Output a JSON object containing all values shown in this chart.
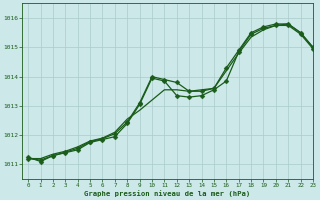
{
  "title": "Graphe pression niveau de la mer (hPa)",
  "background_color": "#cce8e8",
  "grid_color": "#aacccc",
  "line_color": "#1a5c1a",
  "xlim": [
    -0.5,
    23
  ],
  "ylim": [
    1010.5,
    1016.5
  ],
  "yticks": [
    1011,
    1012,
    1013,
    1014,
    1015,
    1016
  ],
  "xticks": [
    0,
    1,
    2,
    3,
    4,
    5,
    6,
    7,
    8,
    9,
    10,
    11,
    12,
    13,
    14,
    15,
    16,
    17,
    18,
    19,
    20,
    21,
    22,
    23
  ],
  "series": [
    {
      "x": [
        0,
        1,
        2,
        3,
        4,
        5,
        6,
        7,
        8,
        9,
        10,
        11,
        12,
        13,
        14,
        15,
        16,
        17,
        18,
        19,
        20,
        21,
        22,
        23
      ],
      "y": [
        1011.2,
        1011.15,
        1011.3,
        1011.4,
        1011.5,
        1011.75,
        1011.85,
        1011.95,
        1012.4,
        1013.05,
        1013.95,
        1013.85,
        1013.35,
        1013.3,
        1013.35,
        1013.55,
        1013.85,
        1014.85,
        1015.45,
        1015.65,
        1015.75,
        1015.75,
        1015.45,
        1014.95
      ],
      "marker": "D",
      "markersize": 2.5,
      "lw": 0.9
    },
    {
      "x": [
        0,
        1,
        2,
        3,
        4,
        5,
        6,
        7,
        8,
        9,
        10,
        11,
        12,
        13,
        14,
        15,
        16,
        17,
        18,
        19,
        20,
        21,
        22,
        23
      ],
      "y": [
        1011.25,
        1011.1,
        1011.3,
        1011.42,
        1011.55,
        1011.78,
        1011.88,
        1012.05,
        1012.45,
        1013.1,
        1014.0,
        1013.9,
        1013.8,
        1013.5,
        1013.5,
        1013.6,
        1014.3,
        1014.9,
        1015.5,
        1015.7,
        1015.8,
        1015.8,
        1015.5,
        1015.0
      ],
      "marker": "D",
      "markersize": 2.5,
      "lw": 0.9
    },
    {
      "x": [
        0,
        1,
        2,
        3,
        4,
        5,
        6,
        7,
        8,
        9,
        10,
        11,
        12,
        13,
        14,
        15,
        16,
        17,
        18,
        19,
        20,
        21,
        22,
        23
      ],
      "y": [
        1011.2,
        1011.2,
        1011.35,
        1011.45,
        1011.6,
        1011.8,
        1011.9,
        1012.1,
        1012.55,
        1012.85,
        1013.2,
        1013.55,
        1013.55,
        1013.5,
        1013.55,
        1013.6,
        1014.2,
        1014.8,
        1015.35,
        1015.6,
        1015.75,
        1015.8,
        1015.5,
        1015.0
      ],
      "marker": null,
      "markersize": 0,
      "lw": 0.9
    }
  ]
}
